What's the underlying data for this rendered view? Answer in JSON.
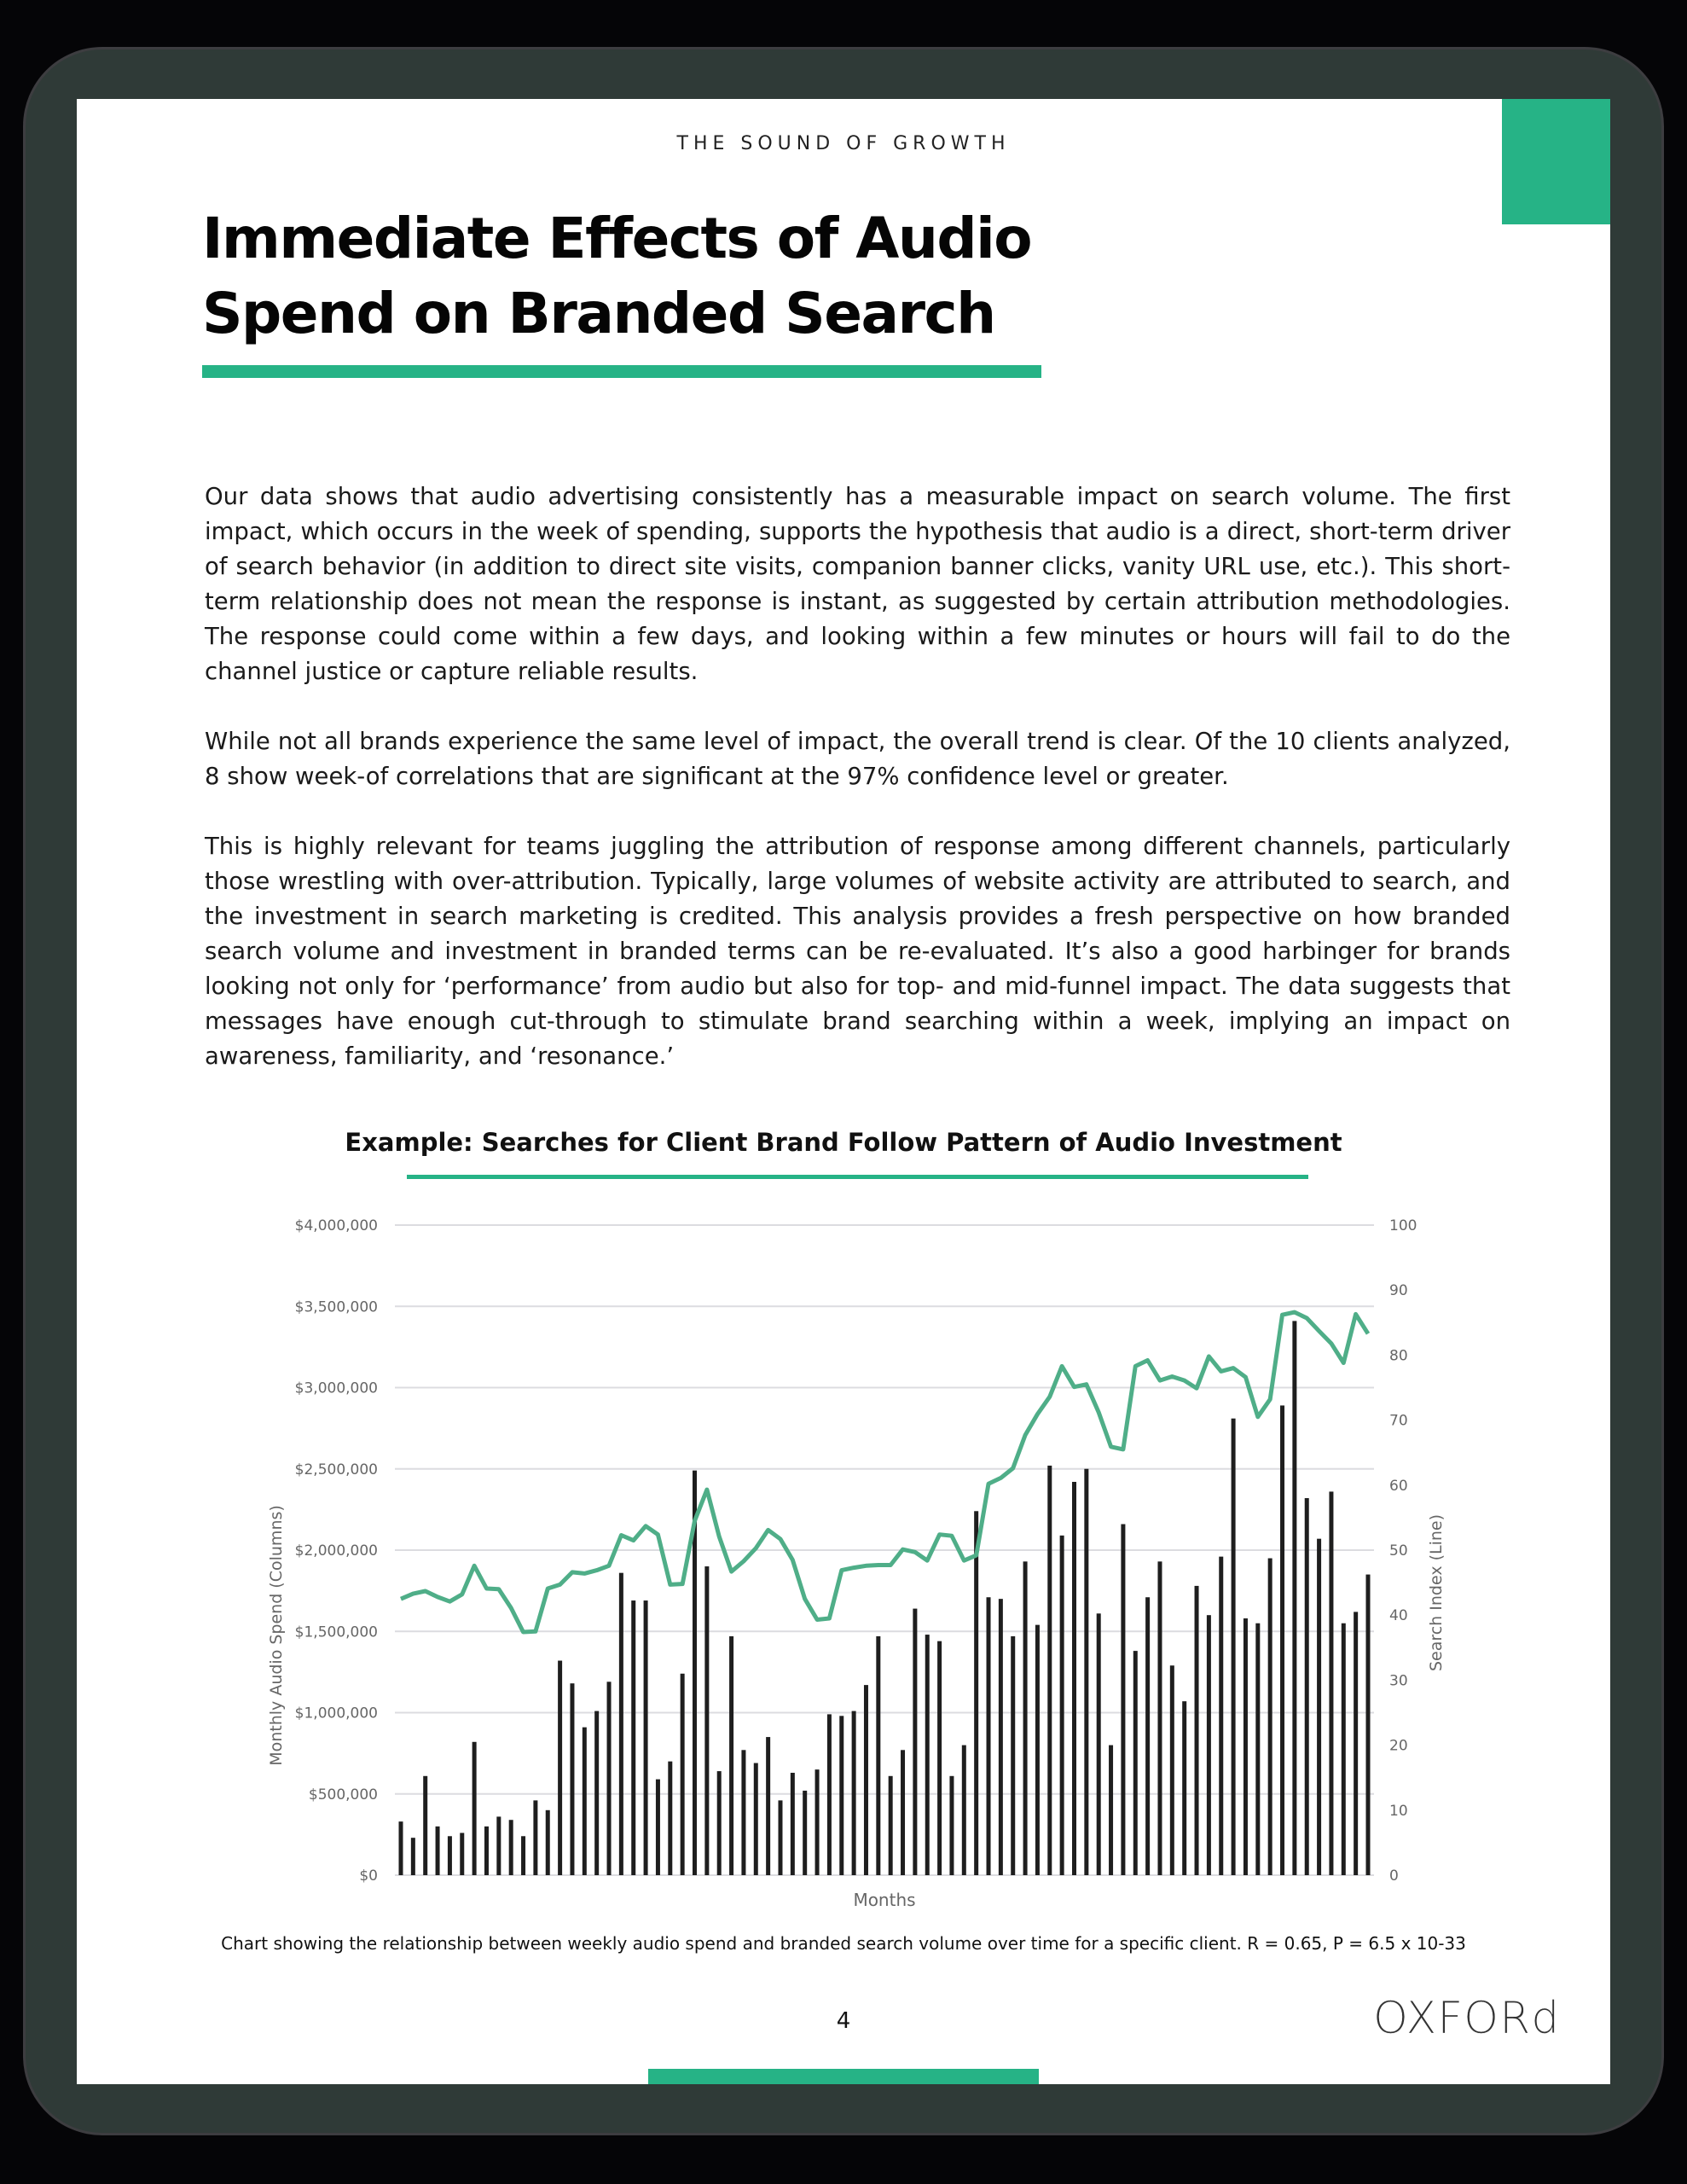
{
  "header": {
    "running_title": "THE SOUND OF GROWTH"
  },
  "title": {
    "line1": "Immediate Effects of Audio",
    "line2": "Spend on Branded Search"
  },
  "paragraphs": [
    "Our data shows that audio advertising consistently has a measurable impact on search volume. The first impact, which occurs in the week of spending, supports the hypothesis that audio is a direct, short-term driver of search behavior (in addition to direct site visits, companion banner clicks, vanity URL use, etc.). This short-term relationship does not mean the response is instant, as suggested by certain attribution methodologies. The response could come within a few days, and looking within a few minutes or hours will fail to do the channel justice or capture reliable results.",
    "While not all brands experience the same level of impact, the overall trend is clear. Of the 10 clients analyzed, 8 show week-of correlations that are significant at the 97% confidence level or greater.",
    "This is highly relevant for teams juggling the attribution of response among different channels, particularly those wrestling with over-attribution. Typically, large volumes of website activity are attributed to search, and the investment in search marketing is credited. This analysis provides a fresh perspective on how branded search volume and investment in branded terms can be re-evaluated. It’s also a good harbinger for brands looking not only for ‘performance’ from audio but also for top- and mid-funnel impact. The data suggests that messages have enough cut-through to stimulate brand searching within a week, implying an impact on awareness, familiarity, and ‘resonance.’"
  ],
  "chart_title": "Example: Searches for Client Brand Follow Pattern of Audio Investment",
  "caption": "Chart showing the relationship between weekly audio spend and branded search volume over time for a specific client. R = 0.65, P = 6.5 x 10-33",
  "footer": {
    "page_number": "4",
    "logo": "OXFORd"
  },
  "colors": {
    "accent": "#26b386",
    "line": "#4fae88",
    "bars": "#1e1e1e",
    "frame": "#2f3a37"
  },
  "chart_data": {
    "type": "bar+line",
    "xlabel": "Months",
    "ylabel_left": "Monthly Audio Spend (Columns)",
    "ylabel_right": "Search Index (Line)",
    "ylim_left": [
      0,
      4000000
    ],
    "ylim_right": [
      0,
      100
    ],
    "left_ticks": [
      "$0",
      "$500,000",
      "$1,000,000",
      "$1,500,000",
      "$2,000,000",
      "$2,500,000",
      "$3,000,000",
      "$3,500,000",
      "$4,000,000"
    ],
    "right_ticks": [
      "0",
      "10",
      "20",
      "30",
      "40",
      "50",
      "60",
      "70",
      "80",
      "90",
      "100"
    ],
    "grid": true,
    "bars_spend": [
      330000,
      230000,
      610000,
      300000,
      240000,
      260000,
      820000,
      300000,
      360000,
      340000,
      240000,
      460000,
      400000,
      1320000,
      1180000,
      910000,
      1010000,
      1190000,
      1860000,
      1690000,
      1690000,
      590000,
      700000,
      1240000,
      2490000,
      1900000,
      640000,
      1470000,
      770000,
      690000,
      850000,
      460000,
      630000,
      520000,
      650000,
      990000,
      980000,
      1010000,
      1170000,
      1470000,
      610000,
      770000,
      1640000,
      1480000,
      1440000,
      610000,
      800000,
      2240000,
      1710000,
      1700000,
      1470000,
      1930000,
      1540000,
      2520000,
      2090000,
      2420000,
      2500000,
      1610000,
      800000,
      2160000,
      1380000,
      1710000,
      1930000,
      1290000,
      1070000,
      1780000,
      1600000,
      1960000,
      2810000,
      1580000,
      1550000,
      1950000,
      2890000,
      3410000,
      2320000,
      2070000,
      2360000,
      1550000,
      1620000,
      1850000
    ],
    "line_search_index": [
      42.5,
      43.3,
      43.7,
      42.8,
      42.1,
      43.2,
      47.6,
      44.1,
      44.0,
      41.1,
      37.4,
      37.5,
      44.1,
      44.7,
      46.6,
      46.4,
      46.9,
      47.6,
      52.3,
      51.5,
      53.7,
      52.4,
      44.7,
      44.8,
      54.5,
      59.3,
      52.1,
      46.7,
      48.3,
      50.3,
      53.1,
      51.7,
      48.5,
      42.5,
      39.3,
      39.5,
      46.9,
      47.3,
      47.6,
      47.7,
      47.7,
      50.1,
      49.7,
      48.4,
      52.4,
      52.2,
      48.4,
      49.2,
      60.2,
      61.1,
      62.6,
      67.7,
      70.9,
      73.6,
      78.3,
      75.1,
      75.5,
      71.2,
      65.9,
      65.5,
      78.3,
      79.2,
      76.1,
      76.7,
      76.1,
      74.9,
      79.8,
      77.5,
      78.0,
      76.6,
      70.5,
      73.2,
      86.2,
      86.6,
      85.7,
      83.7,
      81.8,
      78.8,
      86.3,
      83.3
    ]
  }
}
